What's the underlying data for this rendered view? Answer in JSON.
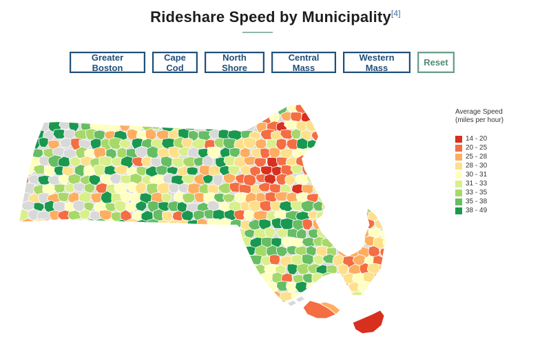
{
  "title": "Rideshare Speed by Municipality",
  "footnote": "[4]",
  "buttons": [
    {
      "label": "Greater Boston",
      "name": "greater-boston-button"
    },
    {
      "label": "Cape Cod",
      "name": "cape-cod-button"
    },
    {
      "label": "North Shore",
      "name": "north-shore-button"
    },
    {
      "label": "Central Mass",
      "name": "central-mass-button"
    },
    {
      "label": "Western Mass",
      "name": "western-mass-button"
    },
    {
      "label": "Reset",
      "name": "reset-button"
    }
  ],
  "legend": {
    "title_line1": "Average Speed",
    "title_line2": "(miles per hour)",
    "items": [
      {
        "label": "14 - 20",
        "color": "#d7301f"
      },
      {
        "label": "20 - 25",
        "color": "#f46d43"
      },
      {
        "label": "25 - 28",
        "color": "#fdae61"
      },
      {
        "label": "28 - 30",
        "color": "#fee08b"
      },
      {
        "label": "30 - 31",
        "color": "#ffffbf"
      },
      {
        "label": "31 - 33",
        "color": "#d9ef8b"
      },
      {
        "label": "33 - 35",
        "color": "#a6d96a"
      },
      {
        "label": "35 - 38",
        "color": "#66bd63"
      },
      {
        "label": "38 - 49",
        "color": "#1a9850"
      }
    ]
  },
  "no_data_color": "#d9d9d9"
}
